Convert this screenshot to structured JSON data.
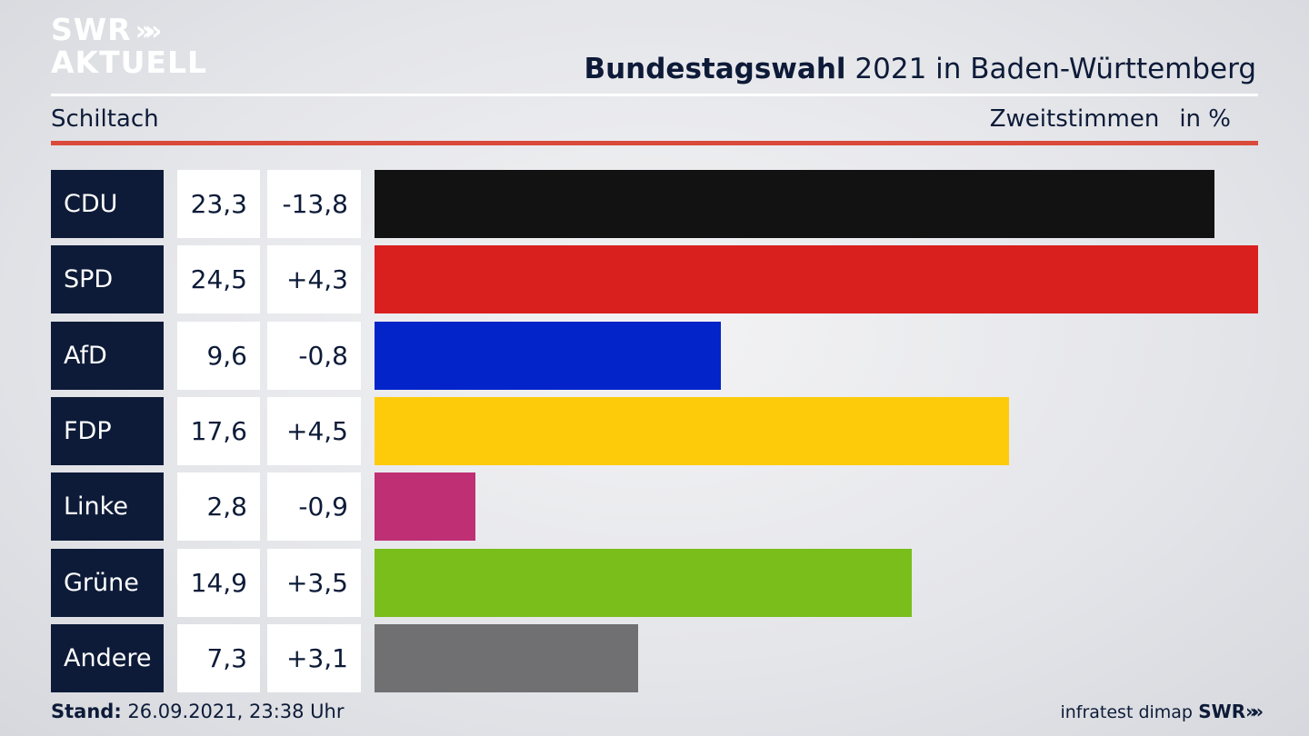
{
  "logo": {
    "line1": "SWR",
    "arrows": "»»",
    "line2": "AKTUELL"
  },
  "header": {
    "title_bold": "Bundestagswahl",
    "title_rest": " 2021 in Baden-Württemberg",
    "region": "Schiltach",
    "measure": "Zweitstimmen",
    "unit": "in %"
  },
  "chart_data": {
    "type": "bar",
    "orientation": "horizontal",
    "title": "Bundestagswahl 2021 in Baden-Württemberg",
    "subtitle": "Schiltach",
    "measure": "Zweitstimmen",
    "unit": "in %",
    "categories": [
      "CDU",
      "SPD",
      "AfD",
      "FDP",
      "Linke",
      "Grüne",
      "Andere"
    ],
    "values": [
      23.3,
      24.5,
      9.6,
      17.6,
      2.8,
      14.9,
      7.3
    ],
    "value_labels": [
      "23,3",
      "24,5",
      "9,6",
      "17,6",
      "2,8",
      "14,9",
      "7,3"
    ],
    "changes": [
      -13.8,
      4.3,
      -0.8,
      4.5,
      -0.9,
      3.5,
      3.1
    ],
    "change_labels": [
      "-13,8",
      "+4,3",
      "-0,8",
      "+4,5",
      "-0,9",
      "+3,5",
      "+3,1"
    ],
    "colors": [
      "#121212",
      "#d9201f",
      "#0224c9",
      "#fdcb0a",
      "#bf2f74",
      "#79be1b",
      "#707072"
    ],
    "grid": false,
    "legend": "none"
  },
  "footer": {
    "stand_label": "Stand:",
    "stand_value": " 26.09.2021, 23:38 Uhr",
    "source": "infratest dimap",
    "brand": "SWR",
    "brand_arrows": "»»"
  }
}
